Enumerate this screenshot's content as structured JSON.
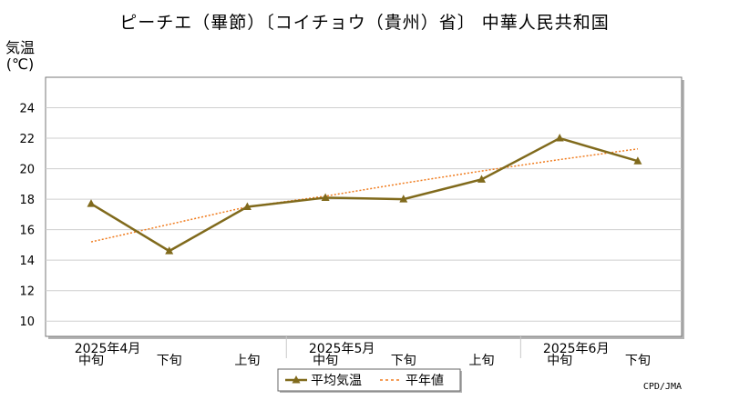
{
  "chart_data": {
    "type": "line",
    "title": "ピーチエ（畢節）〔コイチョウ（貴州）省〕 中華人民共和国",
    "ylabel_line1": "気温",
    "ylabel_line2": "(℃)",
    "ylim": [
      9,
      26
    ],
    "yticks": [
      10,
      12,
      14,
      16,
      18,
      20,
      22,
      24
    ],
    "categories": [
      "中旬",
      "下旬",
      "上旬",
      "中旬",
      "下旬",
      "上旬",
      "中旬",
      "下旬"
    ],
    "month_labels": [
      {
        "label": "2025年4月",
        "index": 0
      },
      {
        "label": "2025年5月",
        "index": 3
      },
      {
        "label": "2025年6月",
        "index": 6
      }
    ],
    "series": [
      {
        "name": "平均気温",
        "values": [
          17.7,
          14.6,
          17.5,
          18.1,
          18.0,
          19.3,
          22.0,
          20.5
        ],
        "color": "#806a1c"
      },
      {
        "name": "平年値",
        "values": [
          15.2,
          16.35,
          17.5,
          18.2,
          19.05,
          19.85,
          20.6,
          21.3
        ],
        "color": "#f07c1e",
        "style": "dotted"
      }
    ],
    "grid": true,
    "legend": "bottom",
    "credit": "CPD/JMA"
  }
}
